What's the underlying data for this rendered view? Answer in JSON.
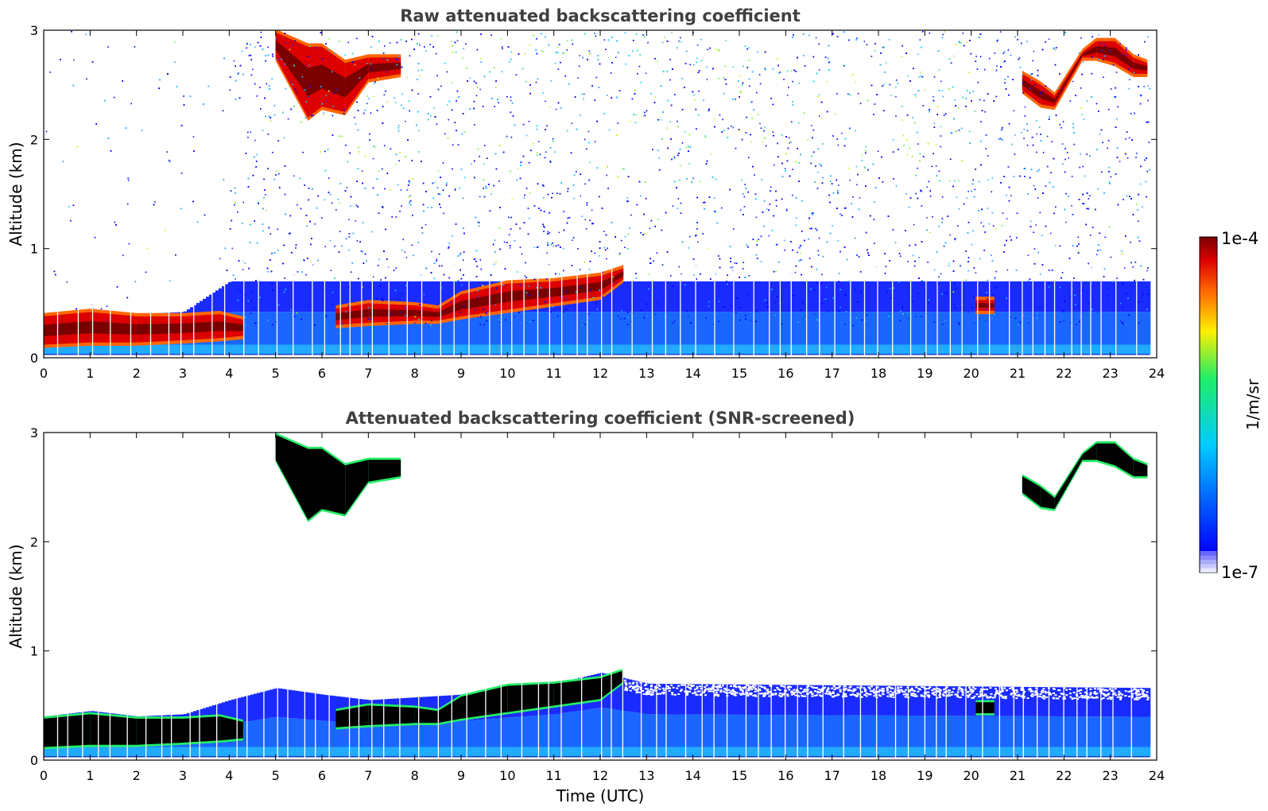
{
  "colors": {
    "min": "#e6e6ff",
    "blue": "#0000ff",
    "cyan": "#00ccff",
    "green": "#22ee66",
    "yellow": "#ffee00",
    "orange": "#ff6600",
    "red": "#dd0000",
    "max": "#7a0000",
    "screened_core": "#000000"
  },
  "chart_data": [
    {
      "type": "heatmap",
      "title": "Raw attenuated backscattering coefficient",
      "xlabel": "",
      "ylabel": "Altitude (km)",
      "xlim": [
        0,
        24
      ],
      "ylim": [
        0,
        3
      ],
      "xticks": [
        "0",
        "1",
        "2",
        "3",
        "4",
        "5",
        "6",
        "7",
        "8",
        "9",
        "10",
        "11",
        "12",
        "13",
        "14",
        "15",
        "16",
        "17",
        "18",
        "19",
        "20",
        "21",
        "22",
        "23",
        "24"
      ],
      "yticks": [
        "0",
        "1",
        "2",
        "3"
      ],
      "boundary_layer_top_km": [
        [
          0,
          0.38
        ],
        [
          1,
          0.4
        ],
        [
          2,
          0.4
        ],
        [
          3,
          0.42
        ],
        [
          4,
          0.7
        ],
        [
          24,
          0.7
        ]
      ],
      "low_cloud_layer": [
        [
          0,
          0.12,
          0.38
        ],
        [
          1,
          0.14,
          0.42
        ],
        [
          2,
          0.14,
          0.38
        ],
        [
          3,
          0.16,
          0.38
        ],
        [
          3.8,
          0.18,
          0.4
        ],
        [
          4.3,
          0.2,
          0.35
        ],
        [
          6.3,
          0.3,
          0.45
        ],
        [
          7,
          0.32,
          0.5
        ],
        [
          8,
          0.34,
          0.48
        ],
        [
          8.5,
          0.34,
          0.45
        ],
        [
          9,
          0.38,
          0.58
        ],
        [
          10,
          0.44,
          0.68
        ],
        [
          11,
          0.5,
          0.7
        ],
        [
          12,
          0.56,
          0.75
        ],
        [
          12.5,
          0.72,
          0.82
        ],
        [
          20.1,
          0.43,
          0.53
        ],
        [
          20.5,
          0.43,
          0.53
        ]
      ],
      "high_cloud_layer": [
        [
          5.0,
          2.75,
          2.98
        ],
        [
          5.7,
          2.2,
          2.85
        ],
        [
          6.0,
          2.3,
          2.85
        ],
        [
          6.5,
          2.25,
          2.7
        ],
        [
          7,
          2.55,
          2.75
        ],
        [
          7.7,
          2.6,
          2.75
        ],
        [
          21.1,
          2.45,
          2.6
        ],
        [
          21.5,
          2.32,
          2.5
        ],
        [
          21.8,
          2.3,
          2.4
        ],
        [
          22.4,
          2.75,
          2.8
        ],
        [
          22.7,
          2.75,
          2.9
        ],
        [
          23.1,
          2.7,
          2.9
        ],
        [
          23.5,
          2.6,
          2.75
        ],
        [
          23.8,
          2.6,
          2.7
        ]
      ]
    },
    {
      "type": "heatmap",
      "title": "Attenuated backscattering coefficient (SNR-screened)",
      "xlabel": "Time (UTC)",
      "ylabel": "Altitude (km)",
      "xlim": [
        0,
        24
      ],
      "ylim": [
        0,
        3
      ],
      "xticks": [
        "0",
        "1",
        "2",
        "3",
        "4",
        "5",
        "6",
        "7",
        "8",
        "9",
        "10",
        "11",
        "12",
        "13",
        "14",
        "15",
        "16",
        "17",
        "18",
        "19",
        "20",
        "21",
        "22",
        "23",
        "24"
      ],
      "yticks": [
        "0",
        "1",
        "2",
        "3"
      ],
      "boundary_layer_top_km": [
        [
          0,
          0.4
        ],
        [
          1,
          0.45
        ],
        [
          2,
          0.4
        ],
        [
          3,
          0.42
        ],
        [
          4,
          0.55
        ],
        [
          5,
          0.66
        ],
        [
          6,
          0.6
        ],
        [
          7,
          0.55
        ],
        [
          9,
          0.6
        ],
        [
          11,
          0.7
        ],
        [
          12,
          0.8
        ],
        [
          13,
          0.7
        ],
        [
          24,
          0.66
        ]
      ]
    }
  ],
  "colorbar": {
    "label": "1/m/sr",
    "max_label": "1e-4",
    "min_label": "1e-7",
    "scale": "log",
    "range": [
      1e-07,
      0.0001
    ]
  }
}
